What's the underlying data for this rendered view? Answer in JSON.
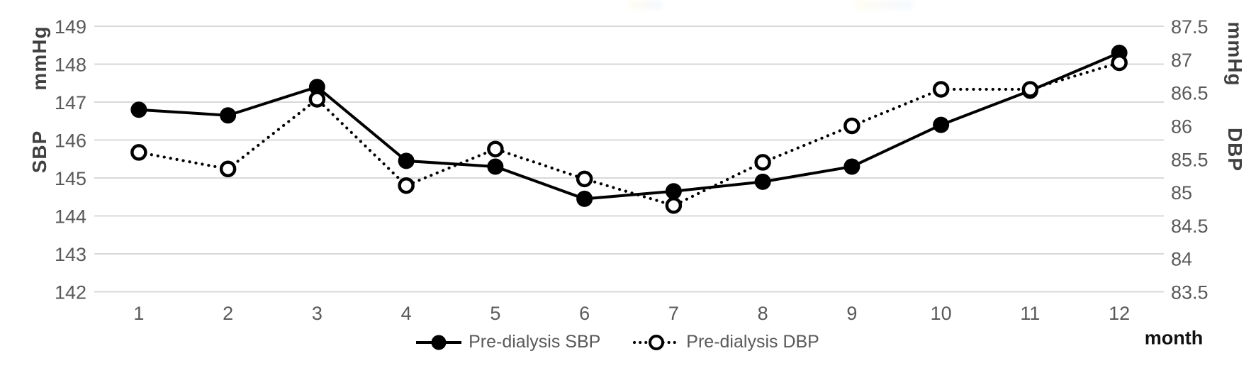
{
  "chart_data": {
    "type": "line",
    "categories": [
      "1",
      "2",
      "3",
      "4",
      "5",
      "6",
      "7",
      "8",
      "9",
      "10",
      "11",
      "12"
    ],
    "xlabel": "month",
    "left_axis": {
      "unit": "mmHg",
      "label": "SBP",
      "ticks": [
        "149",
        "148",
        "147",
        "146",
        "145",
        "144",
        "143",
        "142"
      ],
      "range": [
        142,
        149
      ]
    },
    "right_axis": {
      "unit": "mmHg",
      "label": "DBP",
      "ticks": [
        "87.5",
        "87",
        "86.5",
        "86",
        "85.5",
        "85",
        "84.5",
        "84",
        "83.5"
      ],
      "range": [
        83.5,
        87.5
      ]
    },
    "series": [
      {
        "name": "Pre-dialysis SBP",
        "axis": "left",
        "line": "solid",
        "marker": "filled-circle",
        "values": [
          146.8,
          146.65,
          147.4,
          145.45,
          145.3,
          144.45,
          144.65,
          144.9,
          145.3,
          146.4,
          147.3,
          148.3
        ]
      },
      {
        "name": "Pre-dialysis DBP",
        "axis": "right",
        "line": "dotted",
        "marker": "open-circle",
        "values": [
          85.6,
          85.35,
          86.4,
          85.1,
          85.65,
          85.2,
          84.8,
          85.45,
          86.0,
          86.55,
          86.55,
          86.95
        ]
      }
    ],
    "grid": true,
    "legend_position": "bottom"
  },
  "colors": {
    "series": "#000000",
    "gridline": "#d9d9d9",
    "tick_label": "#595959",
    "axis_title": "#404040",
    "x_axis_title": "#111111",
    "background": "#ffffff"
  }
}
